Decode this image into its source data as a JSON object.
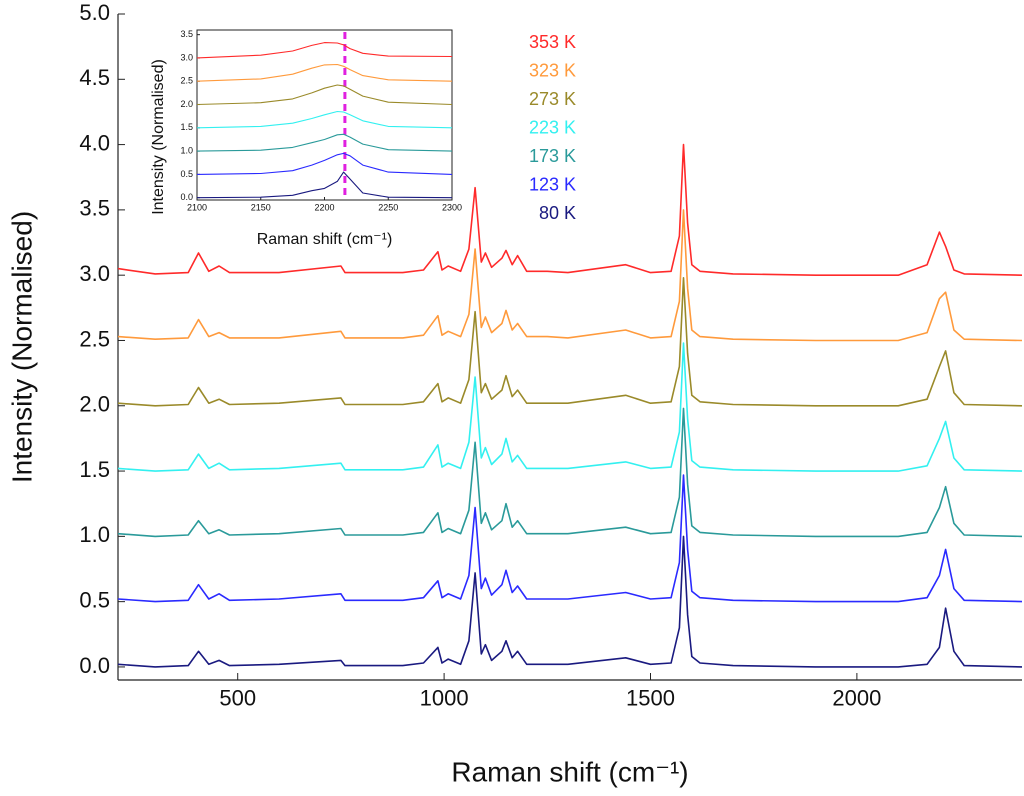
{
  "chart_data": [
    {
      "type": "line",
      "xlabel": "Raman shift (cm⁻¹)",
      "ylabel": "Intensity (Normalised)",
      "xlim": [
        210,
        2400
      ],
      "ylim": [
        -0.1,
        5.0
      ],
      "xticks": [
        500,
        1000,
        1500,
        2000
      ],
      "yticks": [
        {
          "value": 0,
          "label": "0.0"
        },
        0.5,
        {
          "value": 1,
          "label": "1.0"
        },
        1.5,
        {
          "value": 2,
          "label": "2.0"
        },
        2.5,
        {
          "value": 3,
          "label": "3.0"
        },
        3.5,
        {
          "value": 4,
          "label": "4.0"
        },
        4.5,
        {
          "value": 5,
          "label": "5.0"
        }
      ],
      "x": [
        210,
        300,
        380,
        405,
        430,
        455,
        480,
        600,
        750,
        760,
        900,
        950,
        985,
        995,
        1010,
        1040,
        1060,
        1075,
        1090,
        1100,
        1115,
        1140,
        1150,
        1165,
        1178,
        1200,
        1250,
        1300,
        1440,
        1500,
        1550,
        1570,
        1580,
        1590,
        1600,
        1620,
        1700,
        1900,
        2100,
        2170,
        2200,
        2215,
        2235,
        2260,
        2400
      ],
      "series": [
        {
          "name": "353 K",
          "color": "#ff2a2a",
          "values": [
            3.05,
            3.01,
            3.02,
            3.17,
            3.03,
            3.07,
            3.02,
            3.02,
            3.07,
            3.02,
            3.02,
            3.04,
            3.18,
            3.04,
            3.07,
            3.03,
            3.2,
            3.67,
            3.1,
            3.17,
            3.06,
            3.13,
            3.19,
            3.08,
            3.15,
            3.03,
            3.03,
            3.02,
            3.08,
            3.02,
            3.03,
            3.3,
            4.0,
            3.4,
            3.08,
            3.03,
            3.01,
            3.0,
            3.0,
            3.08,
            3.33,
            3.22,
            3.04,
            3.01,
            3.0
          ]
        },
        {
          "name": "323 K",
          "color": "#ff9a3c",
          "values": [
            2.53,
            2.51,
            2.52,
            2.66,
            2.53,
            2.56,
            2.52,
            2.52,
            2.57,
            2.52,
            2.52,
            2.54,
            2.69,
            2.54,
            2.57,
            2.53,
            2.7,
            3.2,
            2.6,
            2.68,
            2.56,
            2.63,
            2.73,
            2.58,
            2.63,
            2.53,
            2.53,
            2.52,
            2.58,
            2.52,
            2.53,
            2.8,
            3.5,
            2.9,
            2.58,
            2.53,
            2.51,
            2.5,
            2.5,
            2.56,
            2.82,
            2.87,
            2.58,
            2.51,
            2.5
          ]
        },
        {
          "name": "273 K",
          "color": "#9a8a2a",
          "values": [
            2.02,
            2.0,
            2.01,
            2.14,
            2.02,
            2.05,
            2.01,
            2.02,
            2.06,
            2.01,
            2.01,
            2.03,
            2.17,
            2.03,
            2.06,
            2.02,
            2.2,
            2.72,
            2.1,
            2.17,
            2.05,
            2.12,
            2.23,
            2.07,
            2.12,
            2.02,
            2.02,
            2.02,
            2.08,
            2.02,
            2.03,
            2.3,
            2.98,
            2.4,
            2.08,
            2.03,
            2.01,
            2.0,
            2.0,
            2.05,
            2.3,
            2.42,
            2.1,
            2.01,
            2.0
          ]
        },
        {
          "name": "223 K",
          "color": "#33f0f0",
          "values": [
            1.52,
            1.5,
            1.51,
            1.63,
            1.52,
            1.56,
            1.51,
            1.52,
            1.56,
            1.51,
            1.51,
            1.53,
            1.7,
            1.53,
            1.56,
            1.52,
            1.72,
            2.22,
            1.6,
            1.68,
            1.55,
            1.63,
            1.75,
            1.57,
            1.62,
            1.52,
            1.52,
            1.52,
            1.57,
            1.52,
            1.53,
            1.8,
            2.48,
            1.9,
            1.58,
            1.53,
            1.51,
            1.5,
            1.5,
            1.54,
            1.75,
            1.88,
            1.6,
            1.51,
            1.5
          ]
        },
        {
          "name": "173 K",
          "color": "#2a9a9a",
          "values": [
            1.02,
            1.0,
            1.01,
            1.12,
            1.02,
            1.05,
            1.01,
            1.02,
            1.06,
            1.01,
            1.01,
            1.03,
            1.18,
            1.03,
            1.06,
            1.02,
            1.2,
            1.72,
            1.1,
            1.18,
            1.05,
            1.12,
            1.25,
            1.07,
            1.12,
            1.02,
            1.02,
            1.02,
            1.07,
            1.02,
            1.03,
            1.3,
            1.98,
            1.4,
            1.08,
            1.03,
            1.01,
            1.0,
            1.0,
            1.03,
            1.22,
            1.38,
            1.1,
            1.01,
            1.0
          ]
        },
        {
          "name": "123 K",
          "color": "#2a2aff",
          "values": [
            0.52,
            0.5,
            0.51,
            0.63,
            0.52,
            0.56,
            0.51,
            0.52,
            0.56,
            0.51,
            0.51,
            0.53,
            0.66,
            0.53,
            0.56,
            0.52,
            0.7,
            1.22,
            0.6,
            0.68,
            0.55,
            0.63,
            0.74,
            0.57,
            0.62,
            0.52,
            0.52,
            0.52,
            0.57,
            0.52,
            0.53,
            0.8,
            1.47,
            0.9,
            0.58,
            0.53,
            0.51,
            0.5,
            0.5,
            0.53,
            0.7,
            0.9,
            0.6,
            0.51,
            0.5
          ]
        },
        {
          "name": "80 K",
          "color": "#1a1a80",
          "values": [
            0.02,
            0.0,
            0.01,
            0.12,
            0.02,
            0.05,
            0.01,
            0.02,
            0.05,
            0.01,
            0.01,
            0.03,
            0.15,
            0.03,
            0.06,
            0.02,
            0.2,
            0.72,
            0.1,
            0.17,
            0.05,
            0.12,
            0.2,
            0.07,
            0.12,
            0.02,
            0.02,
            0.02,
            0.07,
            0.02,
            0.03,
            0.3,
            1.0,
            0.4,
            0.08,
            0.03,
            0.01,
            0.0,
            0.0,
            0.02,
            0.15,
            0.45,
            0.12,
            0.01,
            0.0
          ]
        }
      ]
    },
    {
      "type": "line",
      "xlabel": "Raman shift (cm⁻¹)",
      "ylabel": "Intensity (Normalised)",
      "xlim": [
        2100,
        2300
      ],
      "ylim": [
        -0.05,
        3.6
      ],
      "xticks": [
        2100,
        2150,
        2200,
        2250,
        2300
      ],
      "yticks": [
        {
          "value": 0,
          "label": "0.0"
        },
        0.5,
        {
          "value": 1,
          "label": "1.0"
        },
        1.5,
        {
          "value": 2,
          "label": "2.0"
        },
        2.5,
        {
          "value": 3,
          "label": "3.0"
        },
        3.5
      ],
      "marker_x": 2216,
      "marker_color": "#e020e0",
      "x": [
        2100,
        2150,
        2175,
        2190,
        2200,
        2210,
        2215,
        2220,
        2230,
        2250,
        2300
      ],
      "series": [
        {
          "color": "#ff2a2a",
          "values": [
            3.0,
            3.06,
            3.15,
            3.27,
            3.33,
            3.32,
            3.28,
            3.2,
            3.1,
            3.04,
            3.03
          ]
        },
        {
          "color": "#ff9a3c",
          "values": [
            2.5,
            2.55,
            2.65,
            2.78,
            2.85,
            2.86,
            2.82,
            2.75,
            2.62,
            2.53,
            2.5
          ]
        },
        {
          "color": "#9a8a2a",
          "values": [
            2.0,
            2.04,
            2.12,
            2.25,
            2.35,
            2.42,
            2.4,
            2.33,
            2.18,
            2.05,
            2.0
          ]
        },
        {
          "color": "#33f0f0",
          "values": [
            1.5,
            1.53,
            1.6,
            1.7,
            1.78,
            1.85,
            1.84,
            1.78,
            1.65,
            1.53,
            1.5
          ]
        },
        {
          "color": "#2a9a9a",
          "values": [
            1.0,
            1.02,
            1.08,
            1.18,
            1.25,
            1.35,
            1.36,
            1.3,
            1.15,
            1.03,
            1.0
          ]
        },
        {
          "color": "#2a2aff",
          "values": [
            0.5,
            0.52,
            0.58,
            0.7,
            0.8,
            0.92,
            0.95,
            0.9,
            0.7,
            0.55,
            0.5
          ]
        },
        {
          "color": "#1a1a80",
          "values": [
            0,
            0.01,
            0.05,
            0.15,
            0.2,
            0.35,
            0.55,
            0.4,
            0.1,
            0.01,
            0
          ]
        }
      ]
    }
  ]
}
